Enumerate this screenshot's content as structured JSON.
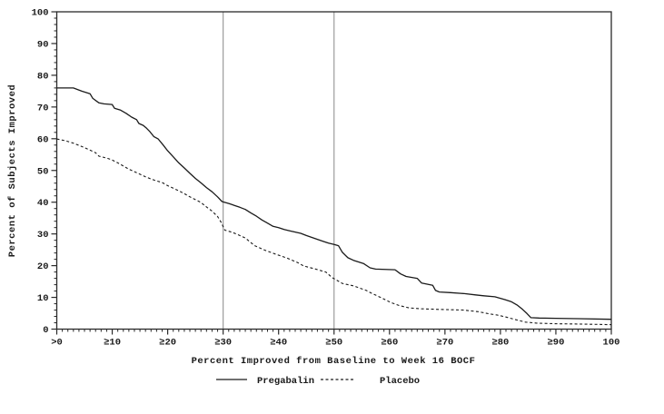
{
  "chart_data": {
    "type": "line",
    "title": "",
    "xlabel": "Percent Improved from Baseline to Week 16 BOCF",
    "ylabel": "Percent of Subjects Improved",
    "xlim": [
      0,
      100
    ],
    "ylim": [
      0,
      100
    ],
    "grid": false,
    "legend_position": "bottom",
    "x_ticks": [
      {
        "value": 0,
        "label": ">0"
      },
      {
        "value": 10,
        "label": "≥10"
      },
      {
        "value": 20,
        "label": "≥20"
      },
      {
        "value": 30,
        "label": "≥30"
      },
      {
        "value": 40,
        "label": "≥40"
      },
      {
        "value": 50,
        "label": "≥50"
      },
      {
        "value": 60,
        "label": "≥60"
      },
      {
        "value": 70,
        "label": "≥70"
      },
      {
        "value": 80,
        "label": "≥80"
      },
      {
        "value": 90,
        "label": "≥90"
      },
      {
        "value": 100,
        "label": "100"
      }
    ],
    "y_ticks": [
      0,
      10,
      20,
      30,
      40,
      50,
      60,
      70,
      80,
      90,
      100
    ],
    "x_minor_tick_step": 1,
    "y_minor_tick_step": 2,
    "reference_lines_x": [
      30,
      50
    ],
    "reference_line_color": "#9b9b9b",
    "frame_color": "#2a2a2a",
    "curve_color": "#1a1a1a",
    "series": [
      {
        "name": "Pregabalin",
        "style": "solid",
        "points": [
          [
            0,
            76
          ],
          [
            3,
            76
          ],
          [
            4.5,
            75
          ],
          [
            6,
            74.2
          ],
          [
            6.5,
            72.7
          ],
          [
            7.6,
            71.3
          ],
          [
            8.5,
            71
          ],
          [
            10,
            70.8
          ],
          [
            10.4,
            69.6
          ],
          [
            11.5,
            69
          ],
          [
            12.5,
            68
          ],
          [
            13.5,
            66.8
          ],
          [
            14.4,
            66
          ],
          [
            14.8,
            64.8
          ],
          [
            15.6,
            64.2
          ],
          [
            16.2,
            63.3
          ],
          [
            16.8,
            62.2
          ],
          [
            17.5,
            60.7
          ],
          [
            18.3,
            59.9
          ],
          [
            19.2,
            58
          ],
          [
            20,
            56.2
          ],
          [
            21,
            54.3
          ],
          [
            22,
            52.4
          ],
          [
            23,
            50.8
          ],
          [
            24,
            49.1
          ],
          [
            25,
            47.5
          ],
          [
            26,
            46.1
          ],
          [
            27,
            44.6
          ],
          [
            28,
            43.3
          ],
          [
            29,
            41.7
          ],
          [
            29.8,
            40.2
          ],
          [
            31,
            39.6
          ],
          [
            32,
            39
          ],
          [
            33,
            38.4
          ],
          [
            34,
            37.7
          ],
          [
            35,
            36.6
          ],
          [
            36,
            35.6
          ],
          [
            37,
            34.4
          ],
          [
            37.8,
            33.6
          ],
          [
            39,
            32.4
          ],
          [
            40,
            32
          ],
          [
            41,
            31.4
          ],
          [
            42,
            31
          ],
          [
            43,
            30.6
          ],
          [
            44,
            30.2
          ],
          [
            45,
            29.5
          ],
          [
            46,
            28.9
          ],
          [
            47,
            28.3
          ],
          [
            48,
            27.7
          ],
          [
            49,
            27.1
          ],
          [
            50,
            26.7
          ],
          [
            50.8,
            26.3
          ],
          [
            51.5,
            24.2
          ],
          [
            52.5,
            22.5
          ],
          [
            53.5,
            21.7
          ],
          [
            55.3,
            20.7
          ],
          [
            56.5,
            19.3
          ],
          [
            57.5,
            18.9
          ],
          [
            61,
            18.7
          ],
          [
            62,
            17.4
          ],
          [
            63,
            16.6
          ],
          [
            65,
            16
          ],
          [
            65.8,
            14.5
          ],
          [
            67.8,
            13.8
          ],
          [
            68.3,
            12.2
          ],
          [
            69,
            11.7
          ],
          [
            71,
            11.5
          ],
          [
            73.5,
            11.2
          ],
          [
            75.5,
            10.8
          ],
          [
            77,
            10.5
          ],
          [
            79,
            10.2
          ],
          [
            80.8,
            9.3
          ],
          [
            82,
            8.6
          ],
          [
            83,
            7.6
          ],
          [
            84,
            6.2
          ],
          [
            84.8,
            4.9
          ],
          [
            85.5,
            3.6
          ],
          [
            87,
            3.5
          ],
          [
            90,
            3.4
          ],
          [
            94,
            3.3
          ],
          [
            100,
            3.1
          ]
        ]
      },
      {
        "name": "Placebo",
        "style": "dashed",
        "points": [
          [
            0,
            59.9
          ],
          [
            1.5,
            59.4
          ],
          [
            3,
            58.6
          ],
          [
            4,
            57.9
          ],
          [
            5,
            57.2
          ],
          [
            6,
            56.4
          ],
          [
            7,
            55.6
          ],
          [
            7.6,
            54.5
          ],
          [
            9,
            53.9
          ],
          [
            10,
            53.3
          ],
          [
            11,
            52.4
          ],
          [
            12,
            51.4
          ],
          [
            13,
            50.4
          ],
          [
            14,
            49.6
          ],
          [
            15,
            48.8
          ],
          [
            16,
            48
          ],
          [
            17,
            47.3
          ],
          [
            18,
            46.7
          ],
          [
            19,
            46.2
          ],
          [
            20,
            45.2
          ],
          [
            21,
            44.4
          ],
          [
            22,
            43.6
          ],
          [
            23,
            42.7
          ],
          [
            24,
            41.7
          ],
          [
            25,
            40.8
          ],
          [
            26,
            39.9
          ],
          [
            27,
            38.5
          ],
          [
            28,
            37.2
          ],
          [
            29,
            35.5
          ],
          [
            29.6,
            33.8
          ],
          [
            30.3,
            31.2
          ],
          [
            31.5,
            30.6
          ],
          [
            32.5,
            29.9
          ],
          [
            34,
            28.7
          ],
          [
            35.7,
            26.3
          ],
          [
            37.5,
            24.9
          ],
          [
            39.5,
            23.6
          ],
          [
            41.5,
            22.4
          ],
          [
            43.4,
            21
          ],
          [
            44.5,
            19.9
          ],
          [
            46.5,
            19
          ],
          [
            48.5,
            18
          ],
          [
            49.7,
            16.2
          ],
          [
            51.5,
            14.4
          ],
          [
            53.6,
            13.6
          ],
          [
            55.8,
            12.2
          ],
          [
            56.9,
            11.2
          ],
          [
            58.6,
            9.8
          ],
          [
            60.2,
            8.4
          ],
          [
            61.8,
            7.4
          ],
          [
            63.5,
            6.7
          ],
          [
            65.7,
            6.4
          ],
          [
            69,
            6.2
          ],
          [
            73.3,
            6
          ],
          [
            76,
            5.5
          ],
          [
            78,
            4.8
          ],
          [
            79.5,
            4.4
          ],
          [
            81,
            3.8
          ],
          [
            82.5,
            3.1
          ],
          [
            84.5,
            2.2
          ],
          [
            86.5,
            1.9
          ],
          [
            90,
            1.7
          ],
          [
            94,
            1.6
          ],
          [
            100,
            1.4
          ]
        ]
      }
    ]
  }
}
